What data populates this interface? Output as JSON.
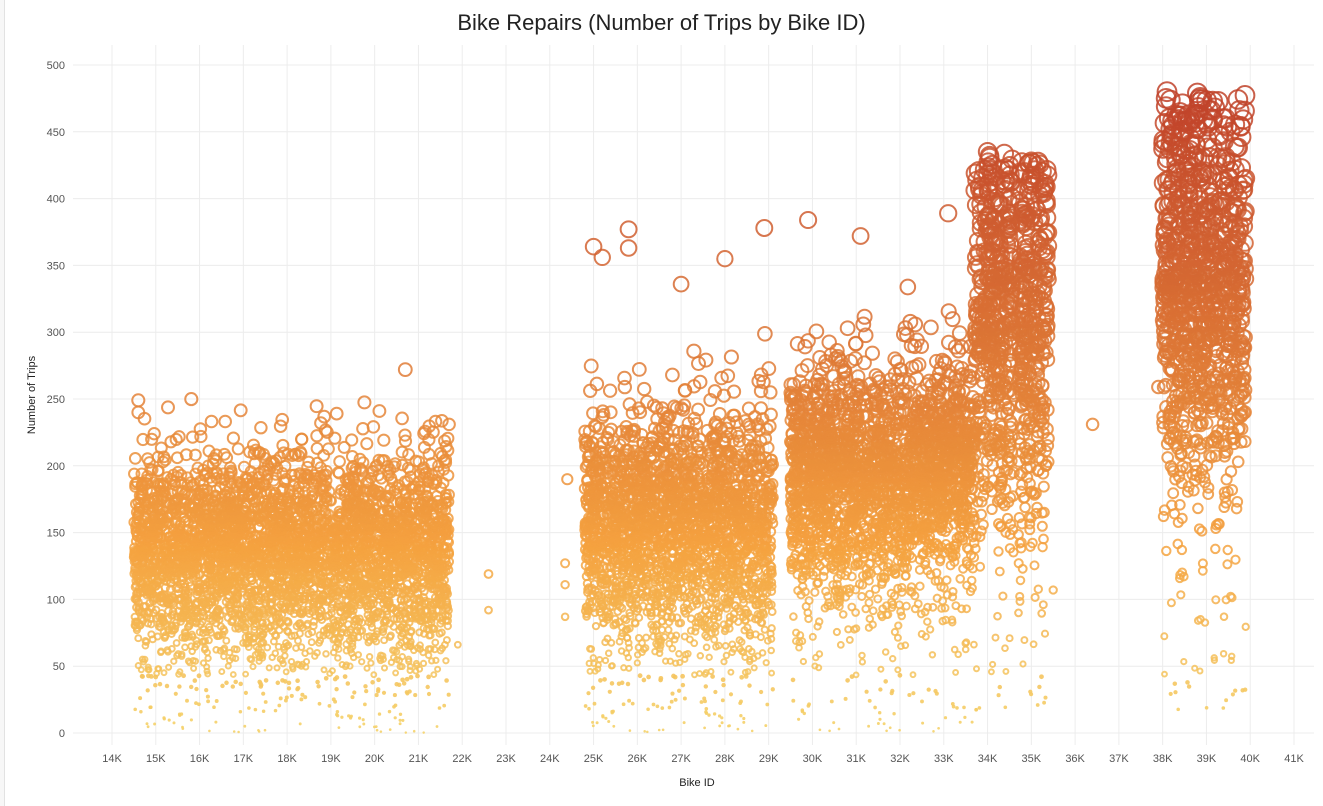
{
  "chart_data": {
    "type": "scatter",
    "title": "Bike Repairs (Number of Trips by Bike ID)",
    "xlabel": "Bike ID",
    "ylabel": "Number of Trips",
    "xlim": [
      13500,
      41500
    ],
    "ylim": [
      0,
      510
    ],
    "x_ticks": [
      14000,
      15000,
      16000,
      17000,
      18000,
      19000,
      20000,
      21000,
      22000,
      23000,
      24000,
      25000,
      26000,
      27000,
      28000,
      29000,
      30000,
      31000,
      32000,
      33000,
      34000,
      35000,
      36000,
      37000,
      38000,
      39000,
      40000,
      41000
    ],
    "x_tick_labels": [
      "14K",
      "15K",
      "16K",
      "17K",
      "18K",
      "19K",
      "20K",
      "21K",
      "22K",
      "23K",
      "24K",
      "25K",
      "26K",
      "27K",
      "28K",
      "29K",
      "30K",
      "31K",
      "32K",
      "33K",
      "34K",
      "35K",
      "36K",
      "37K",
      "38K",
      "39K",
      "40K",
      "41K"
    ],
    "y_ticks": [
      0,
      50,
      100,
      150,
      200,
      250,
      300,
      350,
      400,
      450,
      500
    ],
    "y_tick_labels": [
      "0",
      "50",
      "100",
      "150",
      "200",
      "250",
      "300",
      "350",
      "400",
      "450",
      "500"
    ],
    "grid": true,
    "encoding": {
      "marker": "open-circle",
      "size_by": "Number of Trips",
      "color_by": "Number of Trips",
      "color_low": "#f5d36b",
      "color_mid": "#f4a13f",
      "color_high": "#c0422a"
    },
    "clusters": [
      {
        "x_range": [
          14500,
          21700
        ],
        "y_center": 130,
        "y_spread": 38,
        "y_min": 0,
        "y_max": 250
      },
      {
        "x_range": [
          24800,
          29100
        ],
        "y_center": 150,
        "y_spread": 45,
        "y_min": 0,
        "y_max": 380
      },
      {
        "x_range": [
          29500,
          32300
        ],
        "y_center": 185,
        "y_spread": 45,
        "y_min": 0,
        "y_max": 385
      },
      {
        "x_range": [
          32300,
          33700
        ],
        "y_center": 195,
        "y_spread": 40,
        "y_min": 0,
        "y_max": 390
      },
      {
        "x_range": [
          33700,
          34600
        ],
        "y_center": 300,
        "y_spread": 70,
        "y_min": 15,
        "y_max": 435
      },
      {
        "x_range": [
          34700,
          35400
        ],
        "y_center": 300,
        "y_spread": 80,
        "y_min": 15,
        "y_max": 428
      },
      {
        "x_range": [
          38000,
          39900
        ],
        "y_center": 330,
        "y_spread": 75,
        "y_min": 15,
        "y_max": 480
      }
    ],
    "points": [
      {
        "x": 14600,
        "y": 249
      },
      {
        "x": 14600,
        "y": 240
      },
      {
        "x": 20700,
        "y": 272
      },
      {
        "x": 21700,
        "y": 231
      },
      {
        "x": 22600,
        "y": 119
      },
      {
        "x": 22600,
        "y": 92
      },
      {
        "x": 24400,
        "y": 190
      },
      {
        "x": 24350,
        "y": 127
      },
      {
        "x": 24350,
        "y": 111
      },
      {
        "x": 24350,
        "y": 87
      },
      {
        "x": 21900,
        "y": 66
      },
      {
        "x": 25000,
        "y": 364
      },
      {
        "x": 25200,
        "y": 356
      },
      {
        "x": 25800,
        "y": 377
      },
      {
        "x": 25800,
        "y": 363
      },
      {
        "x": 27000,
        "y": 336
      },
      {
        "x": 28000,
        "y": 355
      },
      {
        "x": 28900,
        "y": 378
      },
      {
        "x": 29900,
        "y": 384
      },
      {
        "x": 31100,
        "y": 372
      },
      {
        "x": 33100,
        "y": 389
      },
      {
        "x": 34000,
        "y": 435
      },
      {
        "x": 35000,
        "y": 428
      },
      {
        "x": 36400,
        "y": 231
      },
      {
        "x": 35500,
        "y": 107
      },
      {
        "x": 38100,
        "y": 480
      },
      {
        "x": 38200,
        "y": 447
      },
      {
        "x": 38800,
        "y": 452
      },
      {
        "x": 39800,
        "y": 446
      },
      {
        "x": 37900,
        "y": 259
      }
    ]
  }
}
